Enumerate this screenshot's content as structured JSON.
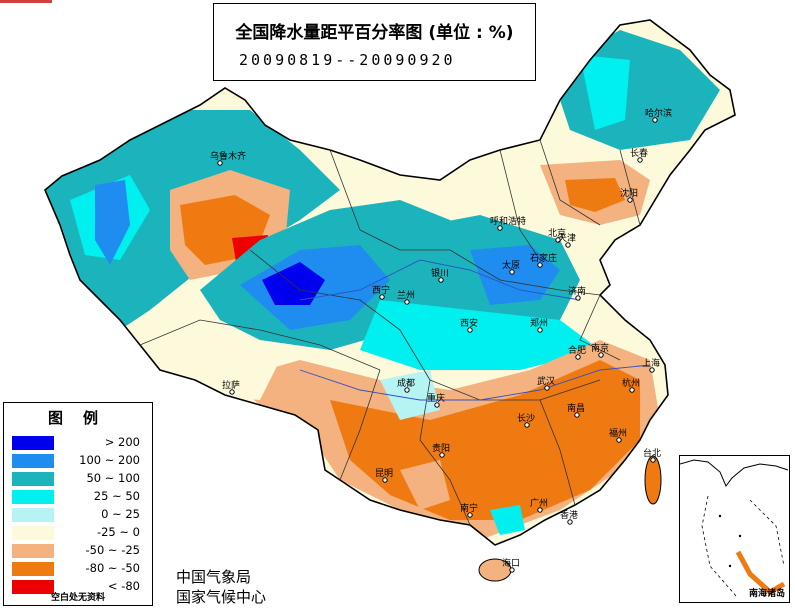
{
  "title": "全国降水量距平百分率图 (单位 : %)",
  "date_range": "20090819--20090920",
  "legend": {
    "title": "图例",
    "items": [
      {
        "range": "> 200",
        "color": "#0000ee"
      },
      {
        "range": "100 ~ 200",
        "color": "#1f8cf0"
      },
      {
        "range": "50 ~ 100",
        "color": "#1cb4bc"
      },
      {
        "range": "25 ~ 50",
        "color": "#00f0f0"
      },
      {
        "range": "0 ~ 25",
        "color": "#b6f4f4"
      },
      {
        "range": "-25 ~ 0",
        "color": "#fdfadc"
      },
      {
        "range": "-50 ~ -25",
        "color": "#f3b27f"
      },
      {
        "range": "-80 ~ -50",
        "color": "#f07a12"
      },
      {
        "range": "< -80",
        "color": "#ee0000"
      }
    ],
    "note": "空白处无资料"
  },
  "agency": {
    "line1": "中国气象局",
    "line2": "国家气候中心"
  },
  "inset_label": "南海诸岛",
  "cities": [
    {
      "name": "乌鲁木齐"
    },
    {
      "name": "拉萨"
    },
    {
      "name": "西宁"
    },
    {
      "name": "兰州"
    },
    {
      "name": "银川"
    },
    {
      "name": "呼和浩特"
    },
    {
      "name": "北京"
    },
    {
      "name": "天津"
    },
    {
      "name": "石家庄"
    },
    {
      "name": "太原"
    },
    {
      "name": "济南"
    },
    {
      "name": "郑州"
    },
    {
      "name": "西安"
    },
    {
      "name": "成都"
    },
    {
      "name": "重庆"
    },
    {
      "name": "贵阳"
    },
    {
      "name": "昆明"
    },
    {
      "name": "南宁"
    },
    {
      "name": "广州"
    },
    {
      "name": "香港"
    },
    {
      "name": "海口"
    },
    {
      "name": "长沙"
    },
    {
      "name": "武汉"
    },
    {
      "name": "南昌"
    },
    {
      "name": "福州"
    },
    {
      "name": "台北"
    },
    {
      "name": "杭州"
    },
    {
      "name": "上海"
    },
    {
      "name": "南京"
    },
    {
      "name": "合肥"
    },
    {
      "name": "沈阳"
    },
    {
      "name": "长春"
    },
    {
      "name": "哈尔滨"
    }
  ]
}
